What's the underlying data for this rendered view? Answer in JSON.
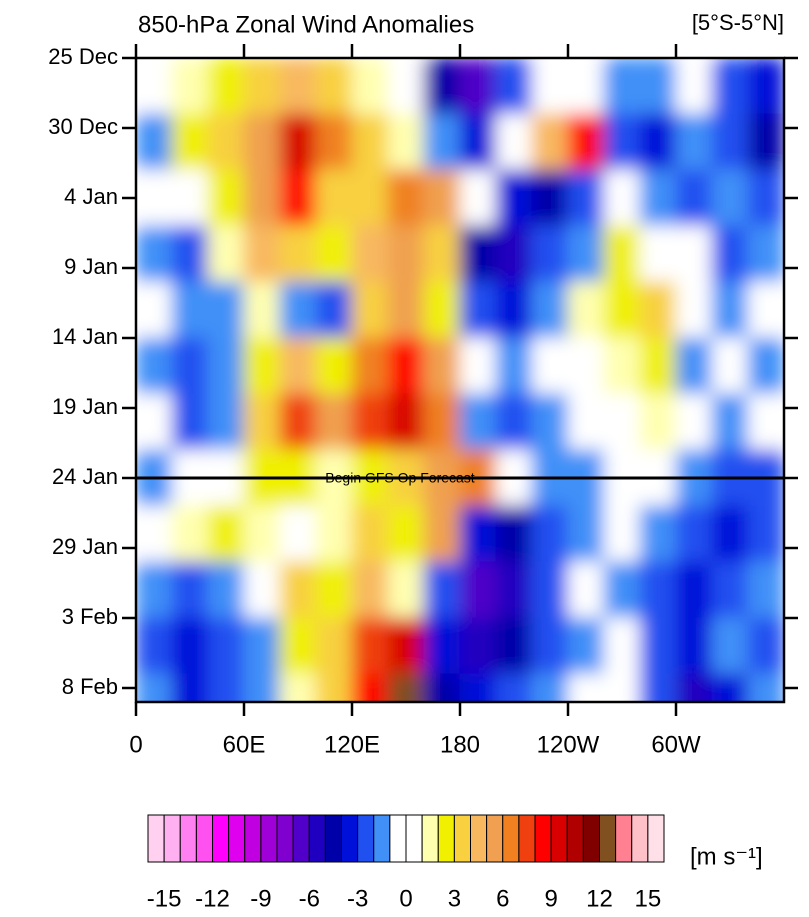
{
  "chart_data": {
    "type": "hovmoller",
    "title": "850-hPa Zonal Wind Anomalies",
    "region": "[5°S-5°N]",
    "units": "[m s⁻¹]",
    "xlim": [
      0,
      360
    ],
    "xticks": [
      0,
      {
        "value": 60,
        "label": "60E"
      },
      {
        "value": 120,
        "label": "120E"
      },
      180,
      {
        "value": 240,
        "label": "120W"
      },
      {
        "value": 300,
        "label": "60W"
      }
    ],
    "ylim": [
      0,
      46
    ],
    "yticks": [
      {
        "value": 0,
        "label": "25 Dec"
      },
      {
        "value": 5,
        "label": "30 Dec"
      },
      {
        "value": 10,
        "label": "4 Jan"
      },
      {
        "value": 15,
        "label": "9 Jan"
      },
      {
        "value": 20,
        "label": "14 Jan"
      },
      {
        "value": 25,
        "label": "19 Jan"
      },
      {
        "value": 30,
        "label": "24 Jan"
      },
      {
        "value": 35,
        "label": "29 Jan"
      },
      {
        "value": 40,
        "label": "3 Feb"
      },
      {
        "value": 45,
        "label": "8 Feb"
      }
    ],
    "forecast_start": 30,
    "annotation": "Begin GFS Op Forecast",
    "field": {
      "lon_edges": [
        0,
        20,
        40,
        60,
        80,
        100,
        120,
        140,
        160,
        180,
        200,
        220,
        240,
        260,
        280,
        300,
        320,
        340,
        360
      ],
      "time_edges": [
        0,
        4,
        8,
        12,
        16,
        20,
        24,
        28,
        32,
        36,
        40,
        44,
        48
      ],
      "values": [
        [
          -1,
          1,
          2,
          3,
          4,
          3,
          1,
          0,
          -5,
          -7,
          -3,
          0,
          -1,
          -2,
          -2,
          -1,
          -3,
          -4
        ],
        [
          -2,
          2,
          3,
          5,
          9,
          6,
          3,
          1,
          -2,
          -4,
          -1,
          4,
          8,
          -3,
          -4,
          -2,
          -3,
          -5
        ],
        [
          -1,
          -1,
          2,
          5,
          8,
          3,
          3,
          6,
          5,
          -1,
          -4,
          -5,
          -3,
          -1,
          -2,
          -3,
          -2,
          -3
        ],
        [
          -2,
          -3,
          1,
          4,
          3,
          2,
          4,
          5,
          3,
          -5,
          -6,
          -3,
          -2,
          2,
          0,
          -1,
          -3,
          -2
        ],
        [
          -1,
          -2,
          -2,
          1,
          -2,
          -3,
          3,
          5,
          2,
          -3,
          -4,
          -2,
          1,
          2,
          3,
          -1,
          -2,
          -1
        ],
        [
          -2,
          -3,
          -2,
          2,
          4,
          2,
          6,
          8,
          5,
          -1,
          -2,
          -1,
          0,
          1,
          2,
          -2,
          -1,
          -2
        ],
        [
          -1,
          -3,
          -2,
          3,
          7,
          5,
          7,
          9,
          6,
          -2,
          -3,
          -2,
          -1,
          0,
          1,
          -1,
          -2,
          -1
        ],
        [
          -2,
          -1,
          0,
          2,
          2,
          1,
          2,
          3,
          5,
          6,
          0,
          -2,
          -2,
          -1,
          -1,
          -2,
          -3,
          -3
        ],
        [
          -1,
          1,
          2,
          1,
          0,
          1,
          3,
          2,
          5,
          -4,
          -5,
          -3,
          -2,
          -1,
          -2,
          -3,
          -4,
          -3
        ],
        [
          -2,
          -3,
          -2,
          0,
          3,
          2,
          4,
          1,
          -3,
          -7,
          -6,
          -3,
          -1,
          -2,
          -3,
          -4,
          -3,
          -2
        ],
        [
          -3,
          -4,
          -3,
          -2,
          2,
          3,
          7,
          9,
          -4,
          -6,
          -5,
          -3,
          -2,
          -1,
          -3,
          -4,
          -2,
          -3
        ],
        [
          -2,
          -4,
          -3,
          -2,
          1,
          3,
          8,
          12,
          -5,
          -4,
          -3,
          -2,
          -1,
          -1,
          -3,
          -6,
          -4,
          -2
        ]
      ]
    },
    "cbar_lim": [
      -16,
      16
    ],
    "cbar_ticks": [
      -15,
      -12,
      -9,
      -6,
      -3,
      0,
      3,
      6,
      9,
      12,
      15
    ],
    "colors": [
      "#ffd0f0",
      "#ffb0f0",
      "#ff80f0",
      "#ff50f0",
      "#ff00ff",
      "#e000f0",
      "#c000e0",
      "#a000d8",
      "#8000d0",
      "#5000c8",
      "#2000c0",
      "#0000a8",
      "#0010d8",
      "#2050f0",
      "#4090f8",
      "#ffffff",
      "#ffffff",
      "#ffffb0",
      "#f0f000",
      "#f8d040",
      "#f8b860",
      "#f0a050",
      "#f08020",
      "#f04010",
      "#ff0000",
      "#d80000",
      "#b00000",
      "#800000",
      "#805020",
      "#ff8090",
      "#ffc0c8",
      "#ffe0e8"
    ]
  }
}
